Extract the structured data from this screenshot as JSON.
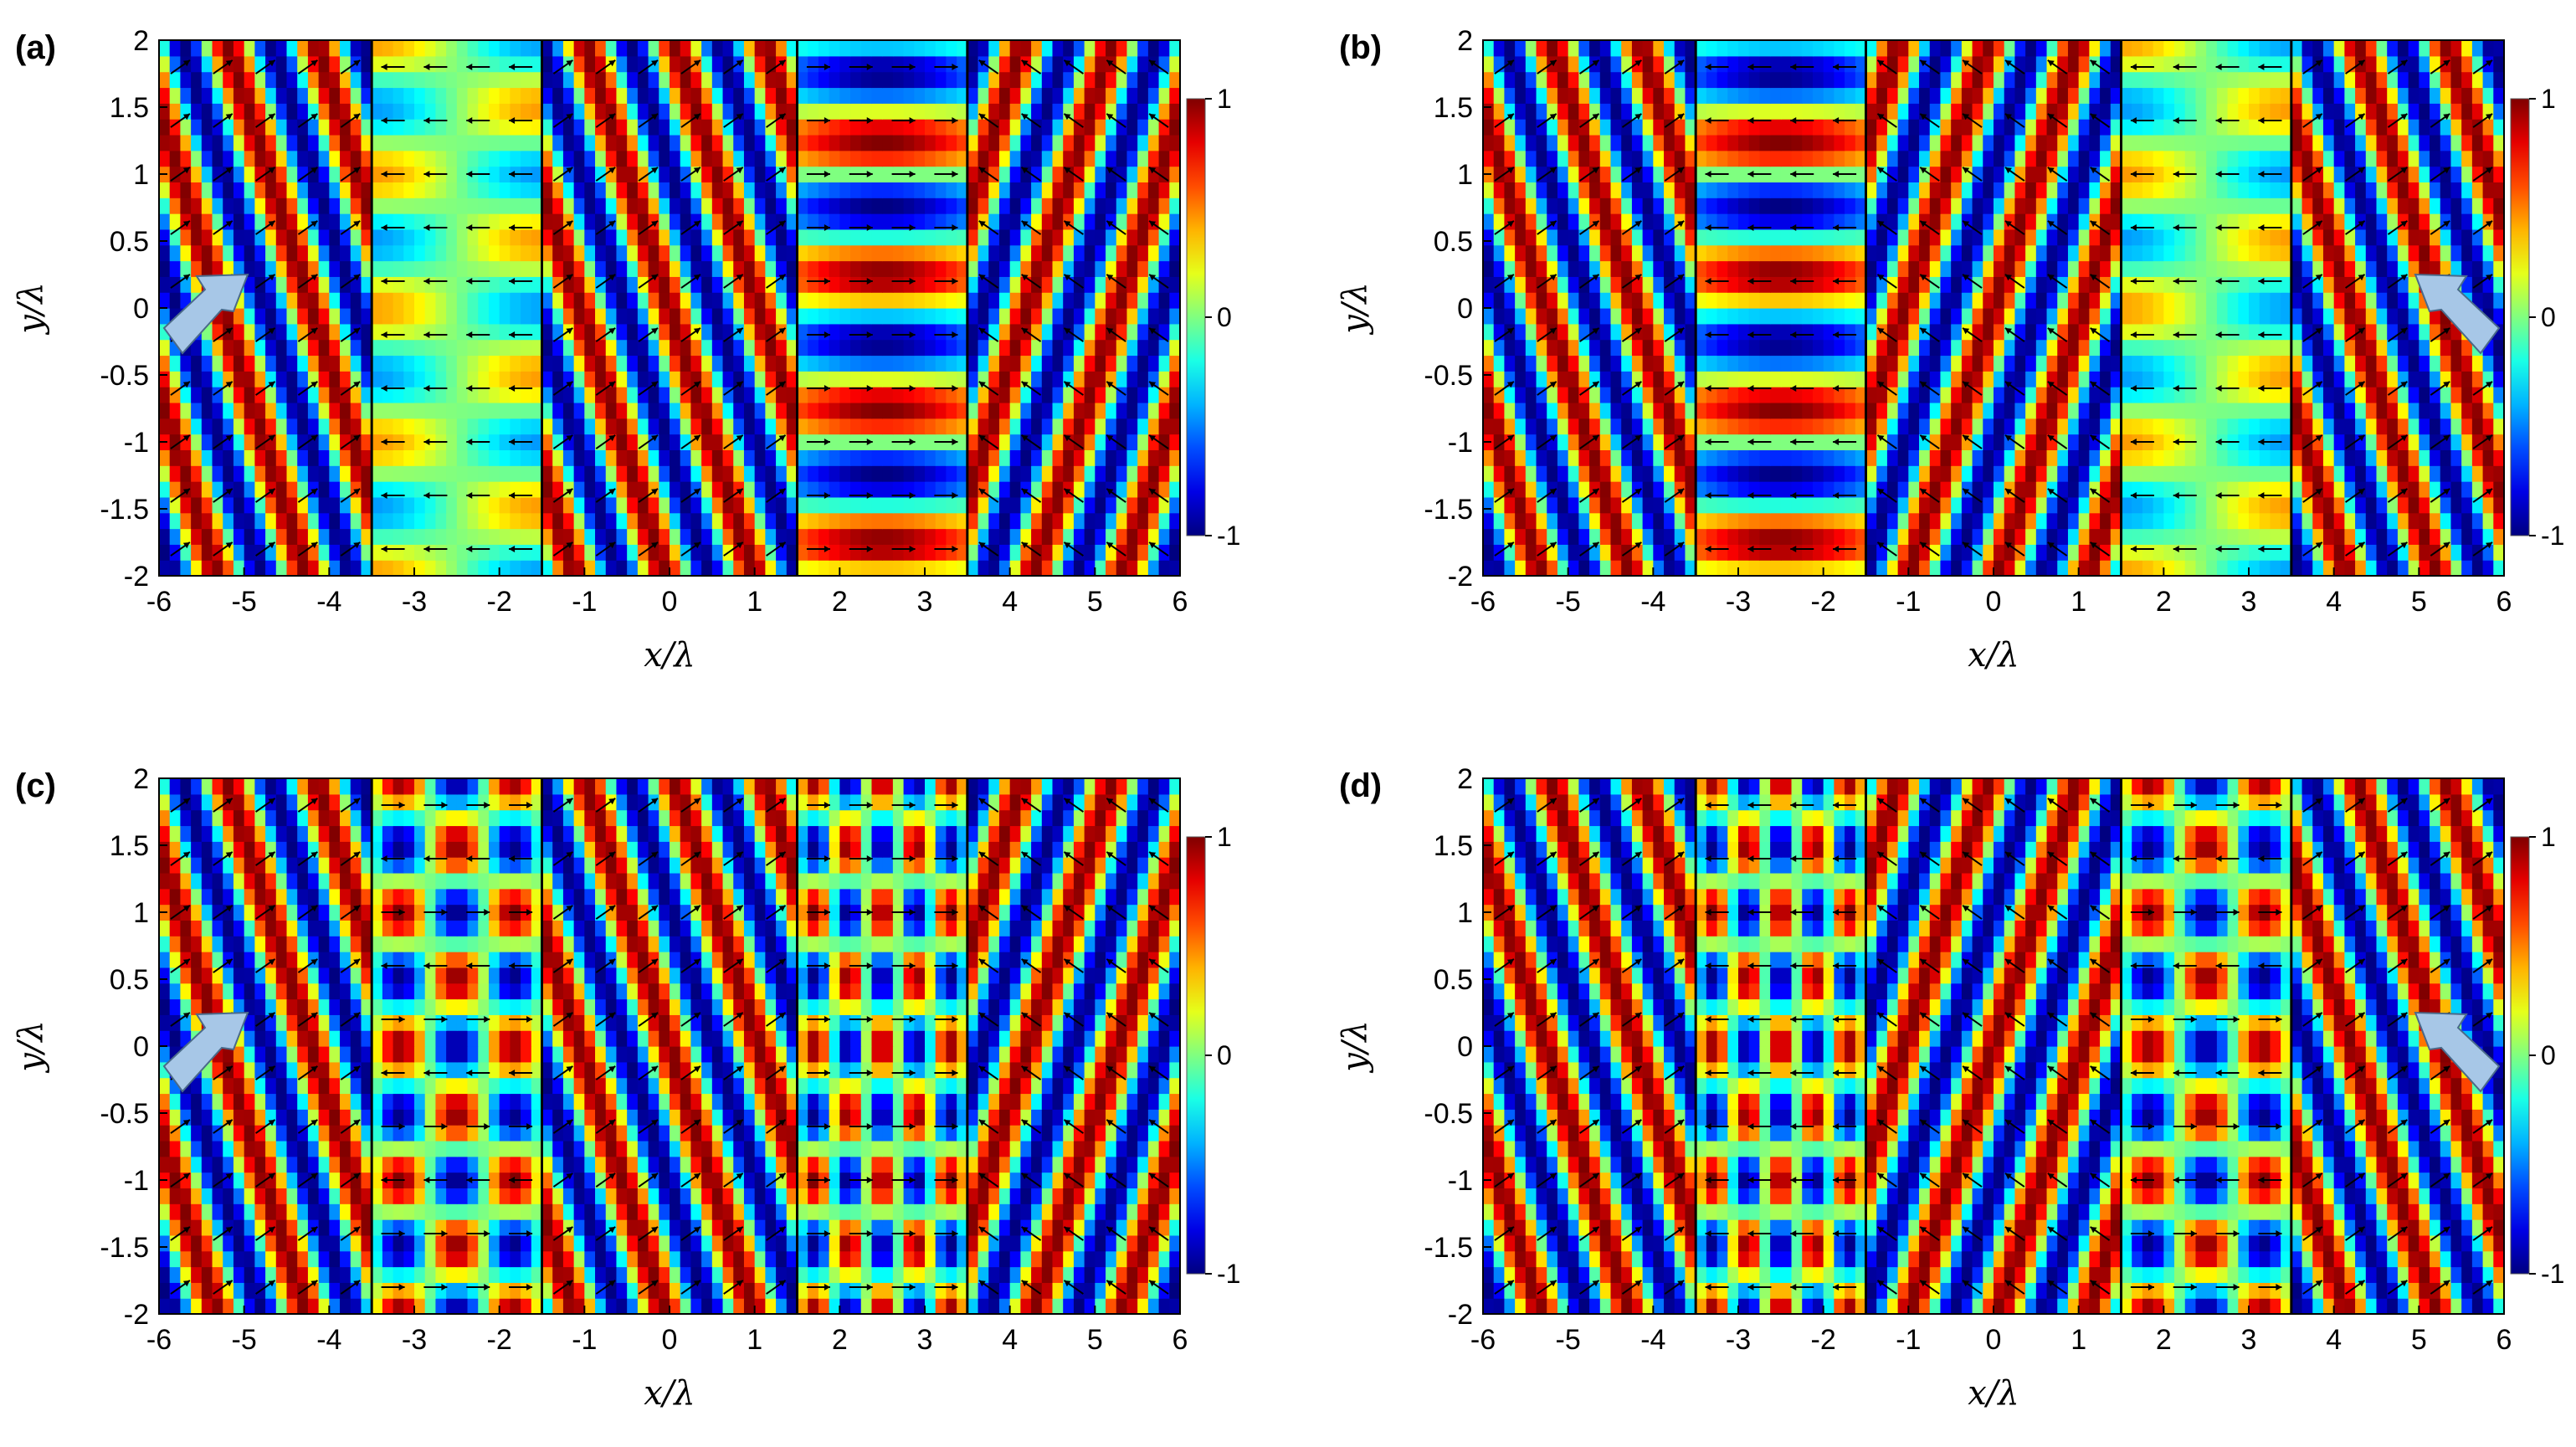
{
  "chart_data": [
    {
      "panel_label": "(a)",
      "type": "heatmap",
      "xlabel": "x/λ",
      "ylabel": "y/λ",
      "xlim": [
        -6,
        6
      ],
      "ylim": [
        -2,
        2
      ],
      "x_ticks": [
        "-6",
        "-5",
        "-4",
        "-3",
        "-2",
        "-1",
        "0",
        "1",
        "2",
        "3",
        "4",
        "5",
        "6"
      ],
      "y_ticks": [
        "2",
        "1.5",
        "1",
        "0.5",
        "0",
        "-0.5",
        "-1",
        "-1.5",
        "-2"
      ],
      "colorbar": {
        "range": [
          -1,
          1
        ],
        "ticks": [
          "1",
          "0",
          "-1"
        ],
        "colormap": "jet"
      },
      "interfaces_x": [
        -3.5,
        -1.5,
        1.5,
        3.5
      ],
      "layers": [
        {
          "x": [
            -6,
            -3.5
          ],
          "kind": "oblique",
          "orientation": "right"
        },
        {
          "x": [
            -3.5,
            -1.5
          ],
          "kind": "weak",
          "shift": 0.0,
          "arrows": "left"
        },
        {
          "x": [
            -1.5,
            1.5
          ],
          "kind": "oblique",
          "orientation": "right"
        },
        {
          "x": [
            1.5,
            3.5
          ],
          "kind": "strong",
          "shift": 0.25,
          "arrows": "right"
        },
        {
          "x": [
            3.5,
            6
          ],
          "kind": "oblique",
          "orientation": "left"
        }
      ],
      "incident_arrow": {
        "x": -5.4,
        "y": 0,
        "direction": "up-right"
      }
    },
    {
      "panel_label": "(b)",
      "type": "heatmap",
      "xlabel": "x/λ",
      "ylabel": "y/λ",
      "xlim": [
        -6,
        6
      ],
      "ylim": [
        -2,
        2
      ],
      "x_ticks": [
        "-6",
        "-5",
        "-4",
        "-3",
        "-2",
        "-1",
        "0",
        "1",
        "2",
        "3",
        "4",
        "5",
        "6"
      ],
      "y_ticks": [
        "2",
        "1.5",
        "1",
        "0.5",
        "0",
        "-0.5",
        "-1",
        "-1.5",
        "-2"
      ],
      "colorbar": {
        "range": [
          -1,
          1
        ],
        "ticks": [
          "1",
          "0",
          "-1"
        ],
        "colormap": "jet"
      },
      "interfaces_x": [
        -3.5,
        -1.5,
        1.5,
        3.5
      ],
      "layers": [
        {
          "x": [
            -6,
            -3.5
          ],
          "kind": "oblique",
          "orientation": "right"
        },
        {
          "x": [
            -3.5,
            -1.5
          ],
          "kind": "strong",
          "shift": 0.25,
          "arrows": "left"
        },
        {
          "x": [
            -1.5,
            1.5
          ],
          "kind": "oblique",
          "orientation": "left"
        },
        {
          "x": [
            1.5,
            3.5
          ],
          "kind": "weak",
          "shift": 0.0,
          "arrows": "left"
        },
        {
          "x": [
            3.5,
            6
          ],
          "kind": "oblique",
          "orientation": "right"
        }
      ],
      "incident_arrow": {
        "x": 5.4,
        "y": 0,
        "direction": "up-left"
      }
    },
    {
      "panel_label": "(c)",
      "type": "heatmap",
      "xlabel": "x/λ",
      "ylabel": "y/λ",
      "xlim": [
        -6,
        6
      ],
      "ylim": [
        -2,
        2
      ],
      "x_ticks": [
        "-6",
        "-5",
        "-4",
        "-3",
        "-2",
        "-1",
        "0",
        "1",
        "2",
        "3",
        "4",
        "5",
        "6"
      ],
      "y_ticks": [
        "2",
        "1.5",
        "1",
        "0.5",
        "0",
        "-0.5",
        "-1",
        "-1.5",
        "-2"
      ],
      "colorbar": {
        "range": [
          -1,
          1
        ],
        "ticks": [
          "1",
          "0",
          "-1"
        ],
        "colormap": "jet"
      },
      "interfaces_x": [
        -3.5,
        -1.5,
        1.5,
        3.5
      ],
      "layers": [
        {
          "x": [
            -6,
            -3.5
          ],
          "kind": "oblique",
          "orientation": "right"
        },
        {
          "x": [
            -3.5,
            -1.5
          ],
          "kind": "checker",
          "nx": 3,
          "arrows": "mixed"
        },
        {
          "x": [
            -1.5,
            1.5
          ],
          "kind": "oblique",
          "orientation": "right"
        },
        {
          "x": [
            1.5,
            3.5
          ],
          "kind": "checker",
          "nx": 5,
          "arrows": "right"
        },
        {
          "x": [
            3.5,
            6
          ],
          "kind": "oblique",
          "orientation": "left"
        }
      ],
      "incident_arrow": {
        "x": -5.4,
        "y": 0,
        "direction": "up-right"
      }
    },
    {
      "panel_label": "(d)",
      "type": "heatmap",
      "xlabel": "x/λ",
      "ylabel": "y/λ",
      "xlim": [
        -6,
        6
      ],
      "ylim": [
        -2,
        2
      ],
      "x_ticks": [
        "-6",
        "-5",
        "-4",
        "-3",
        "-2",
        "-1",
        "0",
        "1",
        "2",
        "3",
        "4",
        "5",
        "6"
      ],
      "y_ticks": [
        "2",
        "1.5",
        "1",
        "0.5",
        "0",
        "-0.5",
        "-1",
        "-1.5",
        "-2"
      ],
      "colorbar": {
        "range": [
          -1,
          1
        ],
        "ticks": [
          "1",
          "0",
          "-1"
        ],
        "colormap": "jet"
      },
      "interfaces_x": [
        -3.5,
        -1.5,
        1.5,
        3.5
      ],
      "layers": [
        {
          "x": [
            -6,
            -3.5
          ],
          "kind": "oblique",
          "orientation": "right"
        },
        {
          "x": [
            -3.5,
            -1.5
          ],
          "kind": "checker",
          "nx": 5,
          "arrows": "left"
        },
        {
          "x": [
            -1.5,
            1.5
          ],
          "kind": "oblique",
          "orientation": "left"
        },
        {
          "x": [
            1.5,
            3.5
          ],
          "kind": "checker",
          "nx": 3,
          "arrows": "mixed"
        },
        {
          "x": [
            3.5,
            6
          ],
          "kind": "oblique",
          "orientation": "right"
        }
      ],
      "incident_arrow": {
        "x": 5.4,
        "y": 0,
        "direction": "up-left"
      }
    }
  ]
}
